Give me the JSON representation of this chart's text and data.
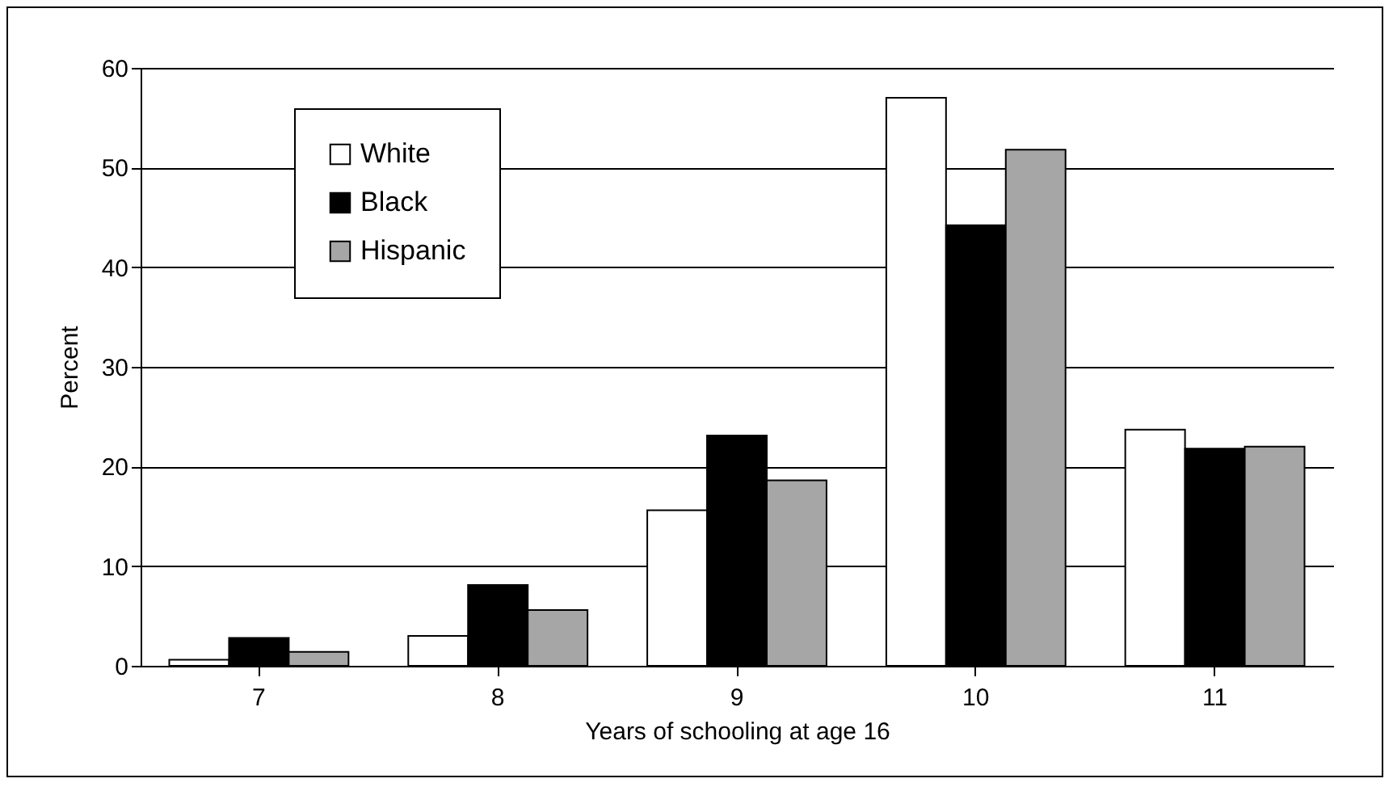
{
  "chart_data": {
    "type": "bar",
    "xlabel": "Years of schooling at age 16",
    "ylabel": "Percent",
    "categories": [
      "7",
      "8",
      "9",
      "10",
      "11"
    ],
    "series": [
      {
        "name": "White",
        "color": "#ffffff",
        "values": [
          0.6,
          3.0,
          15.6,
          57.0,
          23.7
        ]
      },
      {
        "name": "Black",
        "color": "#000000",
        "values": [
          2.8,
          8.1,
          23.1,
          44.2,
          21.8
        ]
      },
      {
        "name": "Hispanic",
        "color": "#a6a6a6",
        "values": [
          1.4,
          5.6,
          18.6,
          51.8,
          22.0
        ]
      }
    ],
    "ylim": [
      0,
      60
    ],
    "yticks": [
      0,
      10,
      20,
      30,
      40,
      50,
      60
    ],
    "grid": "y",
    "legend": "top left"
  }
}
